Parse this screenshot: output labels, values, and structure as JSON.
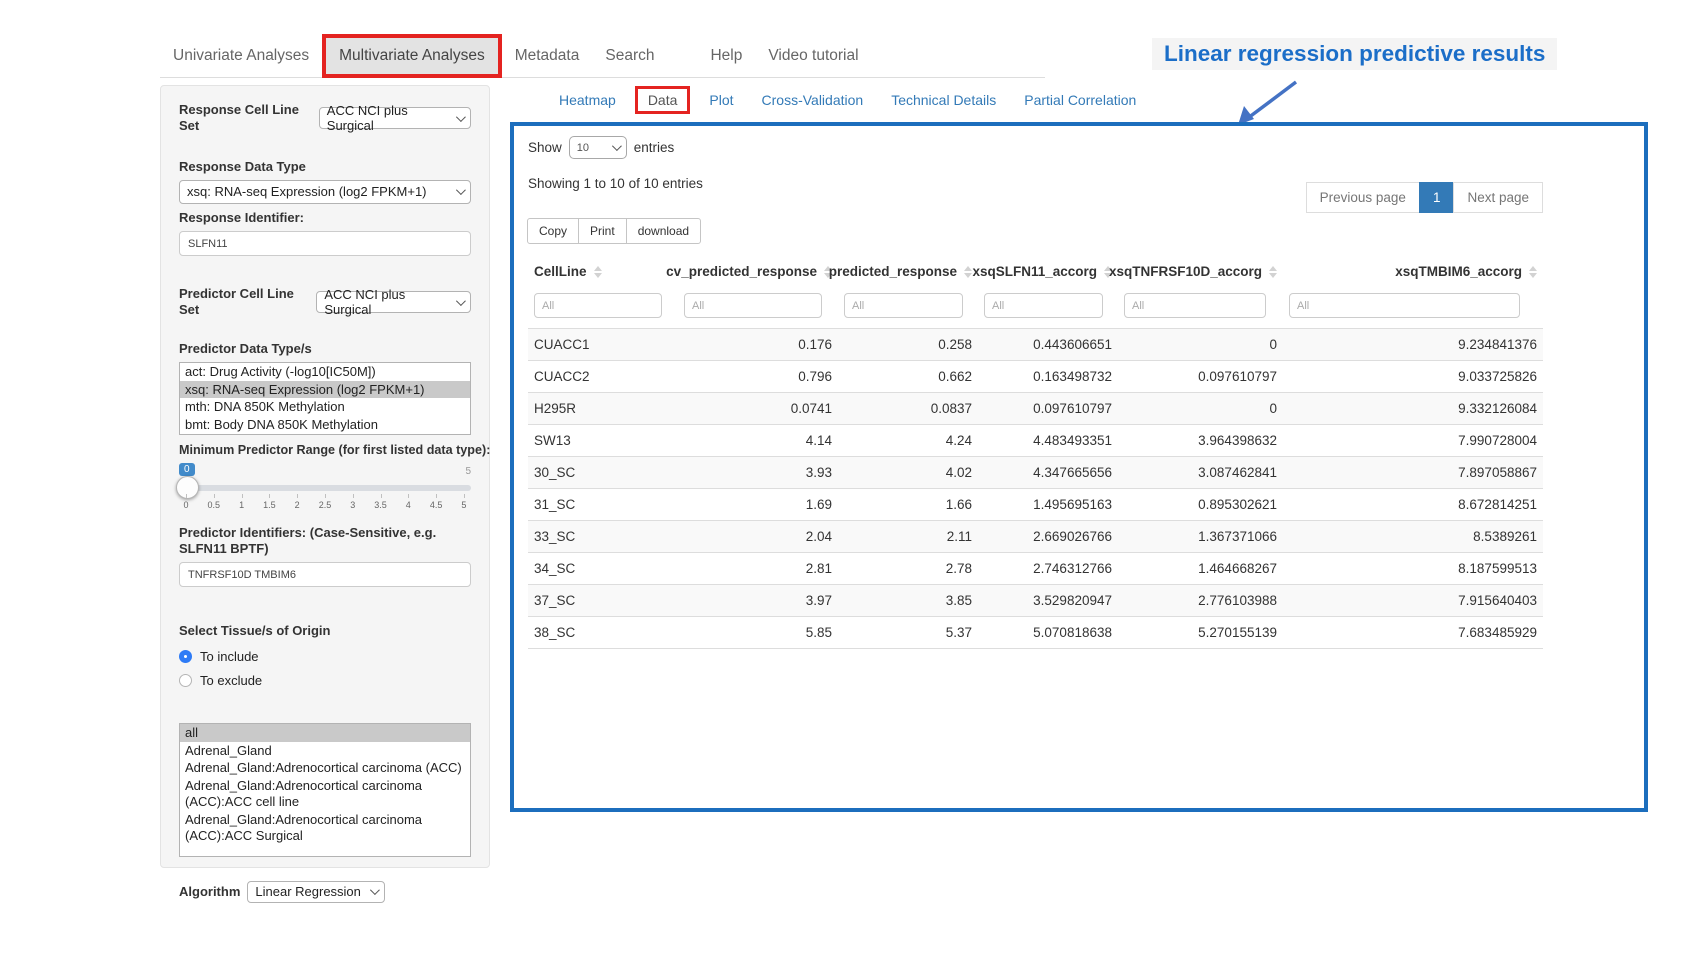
{
  "nav": {
    "items": [
      {
        "label": "Univariate Analyses"
      },
      {
        "label": "Multivariate Analyses",
        "active": true
      },
      {
        "label": "Metadata"
      },
      {
        "label": "Search"
      },
      {
        "label": "Help"
      },
      {
        "label": "Video tutorial"
      }
    ]
  },
  "annotation": {
    "title": "Linear regression predictive results",
    "arrow_color": "#4472c4",
    "title_color": "#1b6ec8",
    "highlight_color": "#e42320",
    "panel_border_color": "#1c6ebd"
  },
  "sidebar": {
    "response_cell_line_set_label": "Response Cell Line Set",
    "response_cell_line_set_value": "ACC NCI plus Surgical",
    "response_data_type_label": "Response Data Type",
    "response_data_type_value": "xsq: RNA-seq Expression (log2 FPKM+1)",
    "response_identifier_label": "Response Identifier:",
    "response_identifier_value": "SLFN11",
    "predictor_cell_line_set_label": "Predictor Cell Line Set",
    "predictor_cell_line_set_value": "ACC NCI plus Surgical",
    "predictor_data_types_label": "Predictor Data Type/s",
    "predictor_data_types": [
      {
        "label": "act: Drug Activity (-log10[IC50M])",
        "selected": false
      },
      {
        "label": "xsq: RNA-seq Expression (log2 FPKM+1)",
        "selected": true
      },
      {
        "label": "mth: DNA 850K Methylation",
        "selected": false
      },
      {
        "label": "bmt: Body DNA 850K Methylation",
        "selected": false
      }
    ],
    "min_predictor_range_label": "Minimum Predictor Range (for first listed data type):",
    "slider": {
      "value": "0",
      "max": "5",
      "ticks": [
        "0",
        "0.5",
        "1",
        "1.5",
        "2",
        "2.5",
        "3",
        "3.5",
        "4",
        "4.5",
        "5"
      ]
    },
    "predictor_identifiers_label": "Predictor Identifiers: (Case-Sensitive, e.g. SLFN11 BPTF)",
    "predictor_identifiers_value": "TNFRSF10D TMBIM6",
    "tissue_label": "Select Tissue/s of Origin",
    "tissue_radio_include": "To include",
    "tissue_radio_exclude": "To exclude",
    "tissues": [
      {
        "label": "all",
        "selected": true
      },
      {
        "label": "Adrenal_Gland",
        "selected": false
      },
      {
        "label": "Adrenal_Gland:Adrenocortical carcinoma (ACC)",
        "selected": false
      },
      {
        "label": "Adrenal_Gland:Adrenocortical carcinoma (ACC):ACC cell line",
        "selected": false
      },
      {
        "label": "Adrenal_Gland:Adrenocortical carcinoma (ACC):ACC Surgical",
        "selected": false
      }
    ],
    "algorithm_label": "Algorithm",
    "algorithm_value": "Linear Regression"
  },
  "tabs": [
    {
      "label": "Heatmap"
    },
    {
      "label": "Data",
      "active": true
    },
    {
      "label": "Plot"
    },
    {
      "label": "Cross-Validation"
    },
    {
      "label": "Technical Details"
    },
    {
      "label": "Partial Correlation"
    }
  ],
  "panel": {
    "show_label": "Show",
    "show_value": "10",
    "entries_label": "entries",
    "showing_text": "Showing 1 to 10 of 10 entries",
    "pagination": {
      "prev": "Previous page",
      "current": "1",
      "next": "Next page"
    },
    "buttons": [
      "Copy",
      "Print",
      "download"
    ],
    "table": {
      "filter_placeholder": "All",
      "columns": [
        "CellLine",
        "cv_predicted_response",
        "predicted_response",
        "xsqSLFN11_accorg",
        "xsqTNFRSF10D_accorg",
        "xsqTMBIM6_accorg"
      ],
      "rows": [
        [
          "CUACC1",
          "0.176",
          "0.258",
          "0.443606651",
          "0",
          "9.234841376"
        ],
        [
          "CUACC2",
          "0.796",
          "0.662",
          "0.163498732",
          "0.097610797",
          "9.033725826"
        ],
        [
          "H295R",
          "0.0741",
          "0.0837",
          "0.097610797",
          "0",
          "9.332126084"
        ],
        [
          "SW13",
          "4.14",
          "4.24",
          "4.483493351",
          "3.964398632",
          "7.990728004"
        ],
        [
          "30_SC",
          "3.93",
          "4.02",
          "4.347665656",
          "3.087462841",
          "7.897058867"
        ],
        [
          "31_SC",
          "1.69",
          "1.66",
          "1.495695163",
          "0.895302621",
          "8.672814251"
        ],
        [
          "33_SC",
          "2.04",
          "2.11",
          "2.669026766",
          "1.367371066",
          "8.5389261"
        ],
        [
          "34_SC",
          "2.81",
          "2.78",
          "2.746312766",
          "1.464668267",
          "8.187599513"
        ],
        [
          "37_SC",
          "3.97",
          "3.85",
          "3.529820947",
          "2.776103988",
          "7.915640403"
        ],
        [
          "38_SC",
          "5.85",
          "5.37",
          "5.070818638",
          "5.270155139",
          "7.683485929"
        ]
      ]
    }
  }
}
